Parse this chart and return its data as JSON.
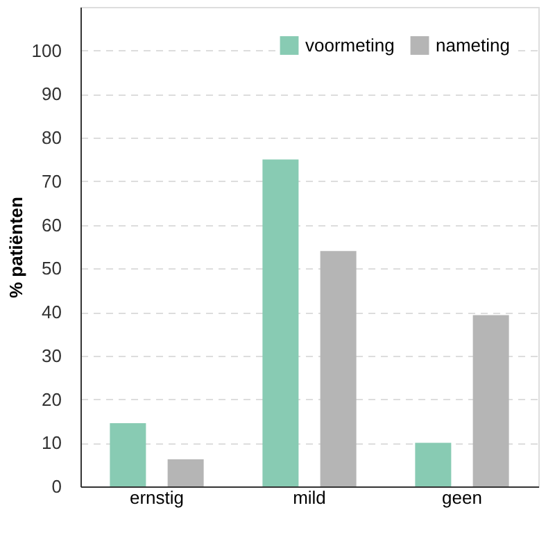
{
  "chart_data": {
    "type": "bar",
    "ylabel": "% patiënten",
    "categories": [
      "ernstig",
      "mild",
      "geen"
    ],
    "series": [
      {
        "name": "voormeting",
        "color": "#88cbb3",
        "values": [
          14.5,
          75,
          10
        ]
      },
      {
        "name": "nameting",
        "color": "#b5b5b5",
        "values": [
          6.2,
          54,
          39.3
        ]
      }
    ],
    "ylim": [
      0,
      110
    ],
    "yticks": [
      0,
      10,
      20,
      30,
      40,
      50,
      60,
      70,
      80,
      90,
      100
    ],
    "grid": "y",
    "legend": "top right"
  }
}
